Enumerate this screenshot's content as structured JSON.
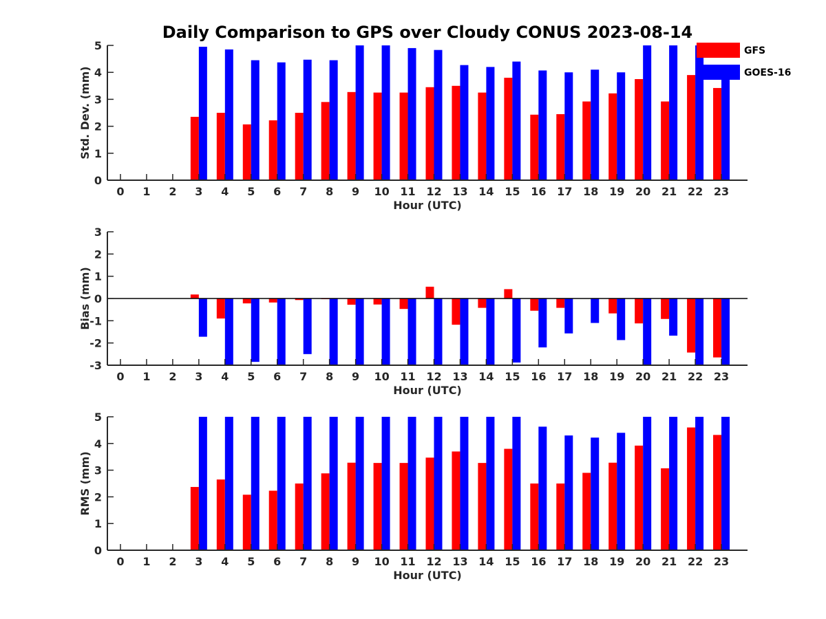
{
  "title": "Daily Comparison to GPS over Cloudy CONUS 2023-08-14",
  "legend": {
    "placement": "top-right",
    "entries": [
      {
        "label": "GFS",
        "color": "#ff0000"
      },
      {
        "label": "GOES-16",
        "color": "#0000ff"
      }
    ]
  },
  "chart_data": [
    {
      "type": "bar",
      "id": "stddev",
      "xlabel": "Hour (UTC)",
      "ylabel": "Std. Dev. (mm)",
      "ylim": [
        0,
        5
      ],
      "yticks": [
        0,
        1,
        2,
        3,
        4,
        5
      ],
      "categories": [
        "0",
        "1",
        "2",
        "3",
        "4",
        "5",
        "6",
        "7",
        "8",
        "9",
        "10",
        "11",
        "12",
        "13",
        "14",
        "15",
        "16",
        "17",
        "18",
        "19",
        "20",
        "21",
        "22",
        "23"
      ],
      "series": [
        {
          "name": "GFS",
          "color": "#ff0000",
          "values": [
            null,
            null,
            null,
            2.35,
            2.5,
            2.07,
            2.22,
            2.5,
            2.9,
            3.27,
            3.25,
            3.25,
            3.45,
            3.5,
            3.25,
            3.8,
            2.43,
            2.45,
            2.92,
            3.22,
            3.75,
            2.92,
            3.9,
            3.42
          ]
        },
        {
          "name": "GOES-16",
          "color": "#0000ff",
          "values": [
            null,
            null,
            null,
            4.95,
            4.85,
            4.45,
            4.37,
            4.47,
            4.45,
            5.0,
            5.0,
            4.9,
            4.83,
            4.27,
            4.2,
            4.4,
            4.07,
            4.0,
            4.1,
            4.0,
            5.0,
            5.0,
            5.0,
            4.0
          ]
        }
      ]
    },
    {
      "type": "bar",
      "id": "bias",
      "xlabel": "Hour (UTC)",
      "ylabel": "Bias (mm)",
      "ylim": [
        -3,
        3
      ],
      "yticks": [
        -3,
        -2,
        -1,
        0,
        1,
        2,
        3
      ],
      "categories": [
        "0",
        "1",
        "2",
        "3",
        "4",
        "5",
        "6",
        "7",
        "8",
        "9",
        "10",
        "11",
        "12",
        "13",
        "14",
        "15",
        "16",
        "17",
        "18",
        "19",
        "20",
        "21",
        "22",
        "23"
      ],
      "series": [
        {
          "name": "GFS",
          "color": "#ff0000",
          "values": [
            null,
            null,
            null,
            0.18,
            -0.9,
            -0.22,
            -0.18,
            -0.07,
            -0.03,
            -0.28,
            -0.27,
            -0.47,
            0.53,
            -1.18,
            -0.42,
            0.42,
            -0.55,
            -0.42,
            0.0,
            -0.67,
            -1.12,
            -0.92,
            -2.43,
            -2.65
          ]
        },
        {
          "name": "GOES-16",
          "color": "#0000ff",
          "values": [
            null,
            null,
            null,
            -1.72,
            -3.0,
            -2.85,
            -3.0,
            -2.5,
            -3.0,
            -3.0,
            -3.0,
            -3.0,
            -3.0,
            -3.0,
            -3.0,
            -2.88,
            -2.2,
            -1.57,
            -1.1,
            -1.87,
            -3.0,
            -1.67,
            -3.0,
            -3.0
          ]
        }
      ]
    },
    {
      "type": "bar",
      "id": "rms",
      "xlabel": "Hour (UTC)",
      "ylabel": "RMS (mm)",
      "ylim": [
        0,
        5
      ],
      "yticks": [
        0,
        1,
        2,
        3,
        4,
        5
      ],
      "categories": [
        "0",
        "1",
        "2",
        "3",
        "4",
        "5",
        "6",
        "7",
        "8",
        "9",
        "10",
        "11",
        "12",
        "13",
        "14",
        "15",
        "16",
        "17",
        "18",
        "19",
        "20",
        "21",
        "22",
        "23"
      ],
      "series": [
        {
          "name": "GFS",
          "color": "#ff0000",
          "values": [
            null,
            null,
            null,
            2.37,
            2.65,
            2.08,
            2.23,
            2.5,
            2.88,
            3.28,
            3.27,
            3.27,
            3.47,
            3.7,
            3.27,
            3.8,
            2.5,
            2.5,
            2.9,
            3.28,
            3.92,
            3.07,
            4.6,
            4.32
          ]
        },
        {
          "name": "GOES-16",
          "color": "#0000ff",
          "values": [
            null,
            null,
            null,
            5.0,
            5.0,
            5.0,
            5.0,
            5.0,
            5.0,
            5.0,
            5.0,
            5.0,
            5.0,
            5.0,
            5.0,
            5.0,
            4.63,
            4.3,
            4.22,
            4.4,
            5.0,
            5.0,
            5.0,
            5.0
          ]
        }
      ]
    }
  ]
}
